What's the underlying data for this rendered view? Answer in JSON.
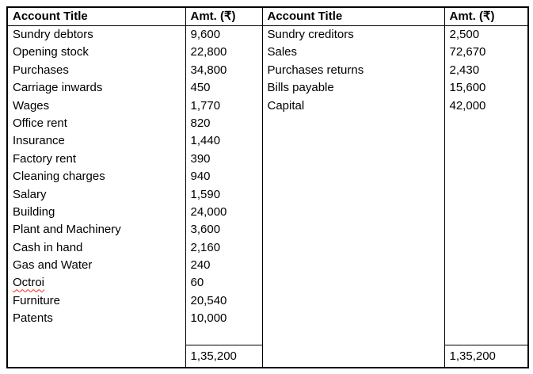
{
  "page": {
    "background": "#ffffff"
  },
  "table": {
    "headers": [
      "Account Title",
      "Amt. (₹)",
      "Account Title",
      "Amt. (₹)"
    ],
    "left": {
      "titles": [
        "Sundry debtors",
        "Opening stock",
        "Purchases",
        "Carriage inwards",
        "Wages",
        "Office rent",
        "Insurance",
        "Factory rent",
        "Cleaning charges",
        "Salary",
        "Building",
        "Plant and Machinery",
        "Cash in hand",
        "Gas and Water",
        "Octroi",
        "Furniture",
        "Patents"
      ],
      "amounts": [
        "9,600",
        "22,800",
        "34,800",
        "450",
        "1,770",
        "820",
        "1,440",
        "390",
        "940",
        "1,590",
        "24,000",
        "3,600",
        "2,160",
        "240",
        "60",
        "20,540",
        "10,000"
      ],
      "total": "1,35,200"
    },
    "right": {
      "titles": [
        "Sundry creditors",
        "Sales",
        "Purchases returns",
        "Bills payable",
        "Capital"
      ],
      "amounts": [
        "2,500",
        "72,670",
        "2,430",
        "15,600",
        "42,000"
      ],
      "total": "1,35,200"
    },
    "spellcheck_flagged": [
      "Octroi"
    ],
    "colors": {
      "border": "#000000",
      "text": "#000000",
      "squiggle": "#ff2a1a"
    }
  }
}
